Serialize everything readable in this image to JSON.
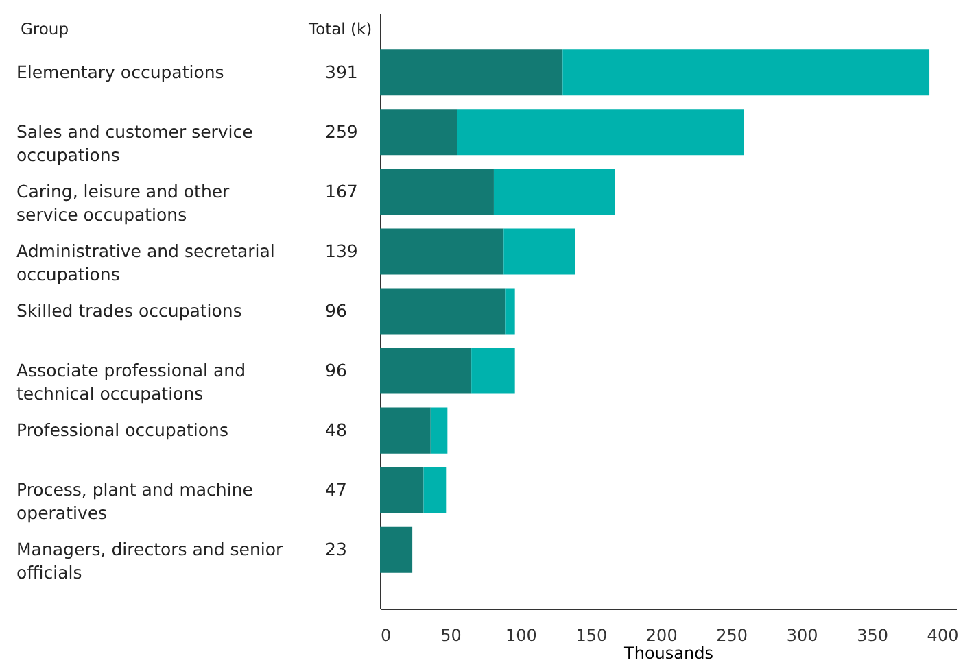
{
  "chart_data": {
    "type": "bar",
    "orientation": "horizontal",
    "stacked": true,
    "ylabel": "Group",
    "xlabel": "Thousands",
    "categories": [
      "Elementary occupations",
      "Sales and customer service occupations",
      "Caring, leisure and other service occupations",
      "Administrative and secretarial occupations",
      "Skilled trades occupations",
      "Associate professional and technical occupations",
      "Professional occupations",
      "Process, plant and machine operatives",
      "Managers, directors and senior officials"
    ],
    "series": [
      {
        "color": "#137a73",
        "values": [
          130,
          55,
          81,
          88,
          89,
          65,
          36,
          31,
          23
        ]
      },
      {
        "color": "#00b2ad",
        "values": [
          261,
          204,
          86,
          51,
          7,
          31,
          12,
          16,
          0
        ]
      }
    ],
    "totals": [
      "391",
      "259",
      "167",
      "139",
      "96",
      "96",
      "48",
      "47",
      "23"
    ],
    "annotations": [
      "Total (k)"
    ],
    "xlim": [
      0,
      410
    ],
    "xticks": [
      0,
      50,
      100,
      150,
      200,
      250,
      300,
      350,
      400
    ],
    "grid": false
  }
}
